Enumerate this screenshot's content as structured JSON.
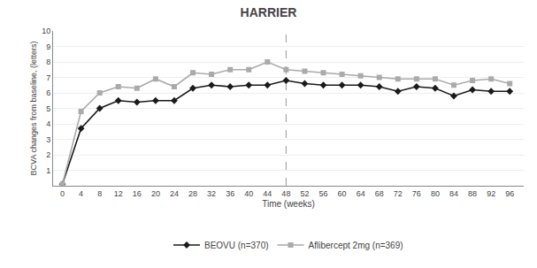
{
  "chart_data": {
    "type": "line",
    "title": "HARRIER",
    "x_label": "Time (weeks)",
    "y_label": "BCVA changes from baseline, (letters)",
    "x": [
      0,
      4,
      8,
      12,
      16,
      20,
      24,
      28,
      32,
      36,
      40,
      44,
      48,
      52,
      56,
      60,
      64,
      68,
      72,
      76,
      80,
      84,
      88,
      92,
      96
    ],
    "series": [
      {
        "name": "BEOVU (n=370)",
        "color": "#1a1a1a",
        "marker": "diamond",
        "values": [
          0.1,
          3.7,
          5.0,
          5.5,
          5.4,
          5.5,
          5.5,
          6.3,
          6.5,
          6.4,
          6.5,
          6.5,
          6.8,
          6.6,
          6.5,
          6.5,
          6.5,
          6.4,
          6.1,
          6.4,
          6.3,
          5.8,
          6.2,
          6.1,
          6.1
        ]
      },
      {
        "name": "Aflibercept 2mg (n=369)",
        "color": "#aaaaaa",
        "marker": "square",
        "values": [
          0.1,
          4.8,
          6.0,
          6.4,
          6.3,
          6.9,
          6.4,
          7.3,
          7.2,
          7.5,
          7.5,
          8.0,
          7.5,
          7.4,
          7.3,
          7.2,
          7.1,
          7.0,
          6.9,
          6.9,
          6.9,
          6.5,
          6.8,
          6.9,
          6.6
        ]
      }
    ],
    "vline": 48,
    "xlim": [
      -2,
      99
    ],
    "xticks": [
      0,
      4,
      8,
      12,
      16,
      20,
      24,
      28,
      32,
      36,
      40,
      44,
      48,
      52,
      56,
      60,
      64,
      68,
      72,
      76,
      80,
      84,
      88,
      92,
      96
    ],
    "ylim": [
      0,
      10
    ],
    "yticks": [
      1,
      2,
      3,
      4,
      5,
      6,
      7,
      8,
      9,
      10
    ],
    "grid": "y",
    "legend": "bottom"
  }
}
